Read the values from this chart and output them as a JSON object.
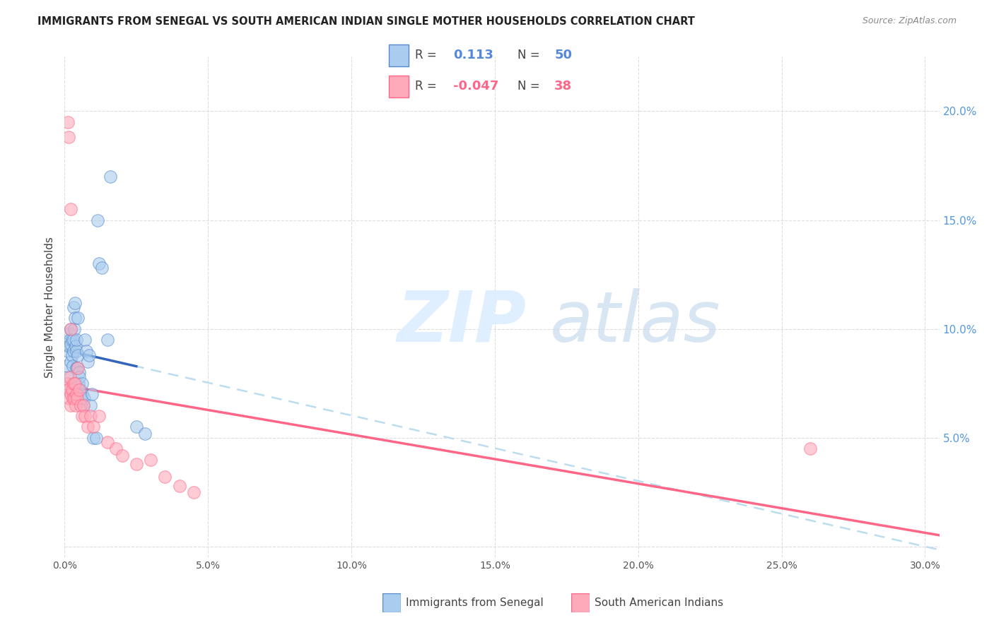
{
  "title": "IMMIGRANTS FROM SENEGAL VS SOUTH AMERICAN INDIAN SINGLE MOTHER HOUSEHOLDS CORRELATION CHART",
  "source": "Source: ZipAtlas.com",
  "ylabel": "Single Mother Households",
  "xlabel_ticks": [
    "0.0%",
    "5.0%",
    "10.0%",
    "15.0%",
    "20.0%",
    "25.0%",
    "30.0%"
  ],
  "xlim": [
    0.0,
    0.305
  ],
  "ylim": [
    -0.005,
    0.225
  ],
  "right_ytick_vals": [
    0.05,
    0.1,
    0.15,
    0.2
  ],
  "right_ytick_labels": [
    "5.0%",
    "10.0%",
    "15.0%",
    "20.0%"
  ],
  "legend_blue_R": "0.113",
  "legend_blue_N": "50",
  "legend_pink_R": "-0.047",
  "legend_pink_N": "38",
  "blue_fill": "#AACCEE",
  "pink_fill": "#FFAABB",
  "blue_edge": "#5588CC",
  "pink_edge": "#FF6688",
  "blue_line": "#3366BB",
  "pink_line": "#FF6688",
  "dashed_color": "#BBDDEE",
  "blue_x": [
    0.0008,
    0.001,
    0.0012,
    0.0015,
    0.0015,
    0.0018,
    0.002,
    0.002,
    0.0022,
    0.0025,
    0.0025,
    0.0028,
    0.003,
    0.003,
    0.0032,
    0.0033,
    0.0035,
    0.0035,
    0.0038,
    0.004,
    0.004,
    0.0042,
    0.0043,
    0.0045,
    0.0045,
    0.0048,
    0.005,
    0.005,
    0.0052,
    0.0055,
    0.0058,
    0.006,
    0.006,
    0.0065,
    0.0068,
    0.007,
    0.0075,
    0.008,
    0.0085,
    0.009,
    0.0095,
    0.01,
    0.011,
    0.0115,
    0.012,
    0.013,
    0.015,
    0.016,
    0.025,
    0.028
  ],
  "blue_y": [
    0.078,
    0.083,
    0.09,
    0.092,
    0.098,
    0.095,
    0.085,
    0.093,
    0.1,
    0.088,
    0.095,
    0.083,
    0.09,
    0.11,
    0.095,
    0.1,
    0.105,
    0.112,
    0.092,
    0.082,
    0.09,
    0.095,
    0.082,
    0.088,
    0.105,
    0.075,
    0.072,
    0.08,
    0.078,
    0.072,
    0.068,
    0.07,
    0.075,
    0.065,
    0.068,
    0.095,
    0.09,
    0.085,
    0.088,
    0.065,
    0.07,
    0.05,
    0.05,
    0.15,
    0.13,
    0.128,
    0.095,
    0.17,
    0.055,
    0.052
  ],
  "pink_x": [
    0.0008,
    0.001,
    0.0012,
    0.0015,
    0.0018,
    0.002,
    0.0022,
    0.0025,
    0.0028,
    0.003,
    0.0033,
    0.0035,
    0.0038,
    0.004,
    0.0043,
    0.0045,
    0.005,
    0.0055,
    0.006,
    0.0065,
    0.007,
    0.008,
    0.009,
    0.01,
    0.012,
    0.015,
    0.018,
    0.02,
    0.025,
    0.03,
    0.035,
    0.04,
    0.045,
    0.26,
    0.0012,
    0.0015,
    0.002,
    0.0022
  ],
  "pink_y": [
    0.073,
    0.075,
    0.072,
    0.068,
    0.078,
    0.065,
    0.07,
    0.072,
    0.068,
    0.075,
    0.068,
    0.075,
    0.065,
    0.07,
    0.068,
    0.082,
    0.072,
    0.065,
    0.06,
    0.065,
    0.06,
    0.055,
    0.06,
    0.055,
    0.06,
    0.048,
    0.045,
    0.042,
    0.038,
    0.04,
    0.032,
    0.028,
    0.025,
    0.045,
    0.195,
    0.188,
    0.155,
    0.1
  ]
}
